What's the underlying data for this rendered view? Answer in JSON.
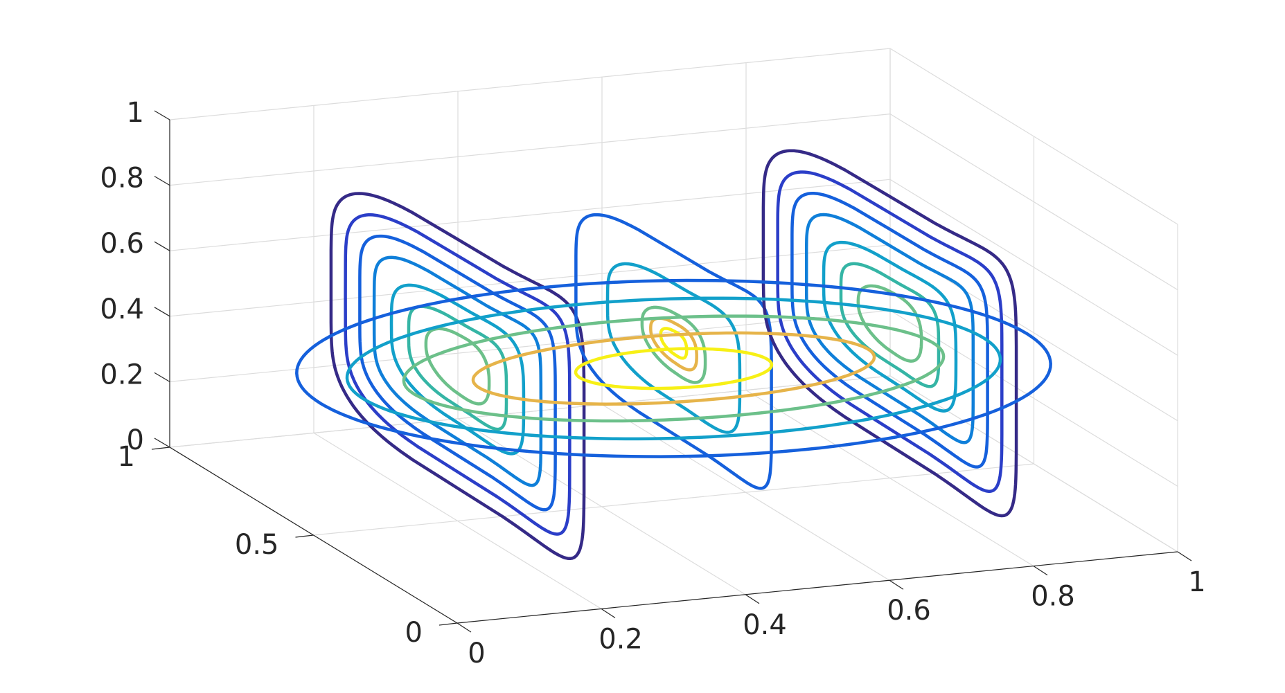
{
  "chart_data": {
    "type": "contour3d-slices",
    "title": "",
    "xlabel": "",
    "ylabel": "",
    "zlabel": "",
    "xlim": [
      0,
      1
    ],
    "ylim": [
      0,
      1
    ],
    "zlim": [
      0,
      1
    ],
    "grid": true,
    "x_ticks": [
      "0",
      "0.2",
      "0.4",
      "0.6",
      "0.8",
      "1"
    ],
    "y_ticks": [
      "0",
      "0.5",
      "1"
    ],
    "z_ticks": [
      "0",
      "0.2",
      "0.4",
      "0.6",
      "0.8",
      "1"
    ],
    "colormap": "parula",
    "slices": [
      {
        "plane": "x",
        "position": 0.2
      },
      {
        "plane": "x",
        "position": 0.5
      },
      {
        "plane": "x",
        "position": 0.8
      },
      {
        "plane": "z",
        "position": 0.4
      }
    ],
    "levels": [
      {
        "level": 1,
        "color": "#352a87"
      },
      {
        "level": 2,
        "color": "#2b3ec8"
      },
      {
        "level": 3,
        "color": "#1560dc"
      },
      {
        "level": 4,
        "color": "#0f7fd9"
      },
      {
        "level": 5,
        "color": "#12a0ca"
      },
      {
        "level": 6,
        "color": "#35b5a5"
      },
      {
        "level": 7,
        "color": "#6cc08a"
      },
      {
        "level": 8,
        "color": "#e6b44a"
      },
      {
        "level": 9,
        "color": "#f7f016"
      }
    ],
    "slice_contours": {
      "x_0.2": [
        1,
        2,
        3,
        4,
        5,
        6,
        7
      ],
      "x_0.5": [
        3,
        5,
        7,
        8,
        9
      ],
      "x_0.8": [
        1,
        2,
        3,
        4,
        5,
        6,
        7
      ],
      "z_0.4": [
        3,
        5,
        7,
        8,
        9
      ]
    }
  }
}
